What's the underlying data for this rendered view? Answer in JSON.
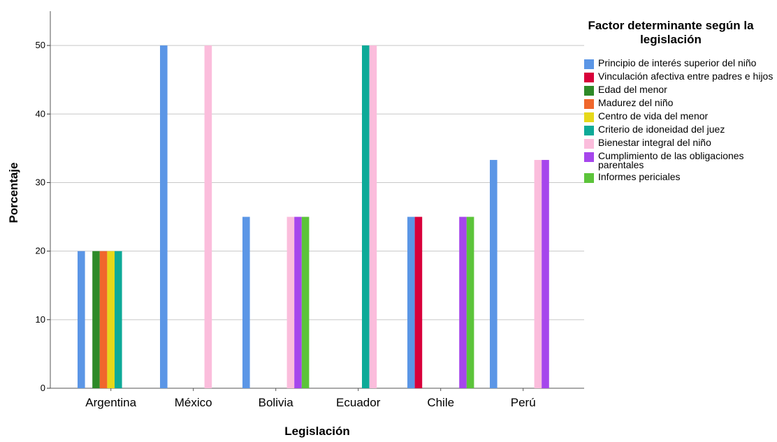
{
  "chart_data": {
    "type": "bar",
    "xlabel": "Legislación",
    "ylabel": "Porcentaje",
    "ylim": [
      0,
      55
    ],
    "yticks": [
      0,
      10,
      20,
      30,
      40,
      50
    ],
    "grid": true,
    "legend_position": "right",
    "legend_title": "Factor determinante según la legislación",
    "categories": [
      "Argentina",
      "México",
      "Bolivia",
      "Ecuador",
      "Chile",
      "Perú"
    ],
    "series": [
      {
        "name": "Principio de interés superior del niño",
        "color": "#5b96e6",
        "values": [
          20,
          50,
          25,
          null,
          25,
          33.3
        ]
      },
      {
        "name": "Vinculación afectiva entre padres e hijos",
        "color": "#d8003a",
        "values": [
          null,
          null,
          null,
          null,
          25,
          null
        ]
      },
      {
        "name": "Edad del menor",
        "color": "#2e8a28",
        "values": [
          20,
          null,
          null,
          null,
          null,
          null
        ]
      },
      {
        "name": "Madurez del niño",
        "color": "#f0672c",
        "values": [
          20,
          null,
          null,
          null,
          null,
          null
        ]
      },
      {
        "name": "Centro de vida del menor",
        "color": "#e6d81a",
        "values": [
          20,
          null,
          null,
          null,
          null,
          null
        ]
      },
      {
        "name": "Criterio de idoneidad del juez",
        "color": "#0eaa98",
        "values": [
          20,
          null,
          null,
          50,
          null,
          null
        ]
      },
      {
        "name": "Bienestar integral del niño",
        "color": "#fbbddc",
        "values": [
          null,
          50,
          25,
          50,
          null,
          33.3
        ]
      },
      {
        "name": "Cumplimiento de las obligaciones parentales",
        "color": "#a646ec",
        "values": [
          null,
          null,
          25,
          null,
          25,
          33.3
        ]
      },
      {
        "name": "Informes periciales",
        "color": "#5cc43a",
        "values": [
          null,
          null,
          25,
          null,
          25,
          null
        ]
      }
    ]
  },
  "legend": {
    "title": "Factor determinante según la legislación",
    "items": [
      {
        "label": "Principio de interés superior del niño",
        "color": "#5b96e6"
      },
      {
        "label": "Vinculación afectiva entre padres e hijos",
        "color": "#d8003a"
      },
      {
        "label": "Edad del menor",
        "color": "#2e8a28"
      },
      {
        "label": "Madurez del niño",
        "color": "#f0672c"
      },
      {
        "label": "Centro de vida del menor",
        "color": "#e6d81a"
      },
      {
        "label": "Criterio de idoneidad del juez",
        "color": "#0eaa98"
      },
      {
        "label": "Bienestar integral del niño",
        "color": "#fbbddc"
      },
      {
        "label": "Cumplimiento de las obligaciones parentales",
        "color": "#a646ec"
      },
      {
        "label": "Informes periciales",
        "color": "#5cc43a"
      }
    ]
  }
}
